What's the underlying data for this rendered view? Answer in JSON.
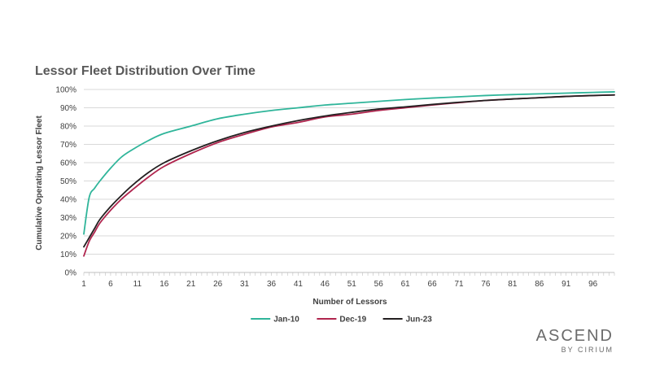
{
  "chart_data": {
    "type": "line",
    "title": "Lessor Fleet Distribution Over Time",
    "xlabel": "Number of Lessors",
    "ylabel": "Cumulative Operating Lessor Fleet",
    "x_tick_labels": [
      "1",
      "6",
      "11",
      "16",
      "21",
      "26",
      "31",
      "36",
      "41",
      "46",
      "51",
      "56",
      "61",
      "66",
      "71",
      "76",
      "81",
      "86",
      "91",
      "96"
    ],
    "y_tick_labels": [
      "0%",
      "10%",
      "20%",
      "30%",
      "40%",
      "50%",
      "60%",
      "70%",
      "80%",
      "90%",
      "100%"
    ],
    "xlim": [
      1,
      100
    ],
    "ylim": [
      0,
      100
    ],
    "grid": "horizontal",
    "legend_position": "bottom",
    "x": [
      1,
      2,
      3,
      4,
      6,
      8,
      10,
      13,
      16,
      21,
      26,
      31,
      36,
      41,
      46,
      51,
      56,
      61,
      66,
      71,
      76,
      81,
      86,
      91,
      96,
      100
    ],
    "series": [
      {
        "name": "Jan-10",
        "color": "#2fb59a",
        "values": [
          21,
          41,
          46,
          50,
          57,
          63,
          67,
          72,
          76,
          80,
          84,
          86.5,
          88.5,
          90,
          91.5,
          92.5,
          93.5,
          94.5,
          95.3,
          96,
          96.7,
          97.2,
          97.6,
          98,
          98.4,
          98.7
        ]
      },
      {
        "name": "Dec-19",
        "color": "#b0254e",
        "values": [
          9,
          17,
          22,
          27,
          34,
          40,
          45,
          52,
          58,
          65,
          71,
          75.5,
          79.5,
          82,
          85,
          86.5,
          88.5,
          90,
          91.5,
          92.8,
          94,
          94.8,
          95.5,
          96.2,
          96.7,
          97
        ]
      },
      {
        "name": "Jun-23",
        "color": "#231f20",
        "values": [
          14,
          19,
          24,
          29,
          36,
          42,
          47.5,
          54.5,
          60,
          66.5,
          72,
          76.5,
          80,
          83,
          85.5,
          87.5,
          89.3,
          90.5,
          91.8,
          93,
          94,
          94.8,
          95.5,
          96.2,
          96.7,
          97
        ]
      }
    ]
  },
  "branding": {
    "name": "ASCEND",
    "byline": "BY CIRIUM"
  }
}
